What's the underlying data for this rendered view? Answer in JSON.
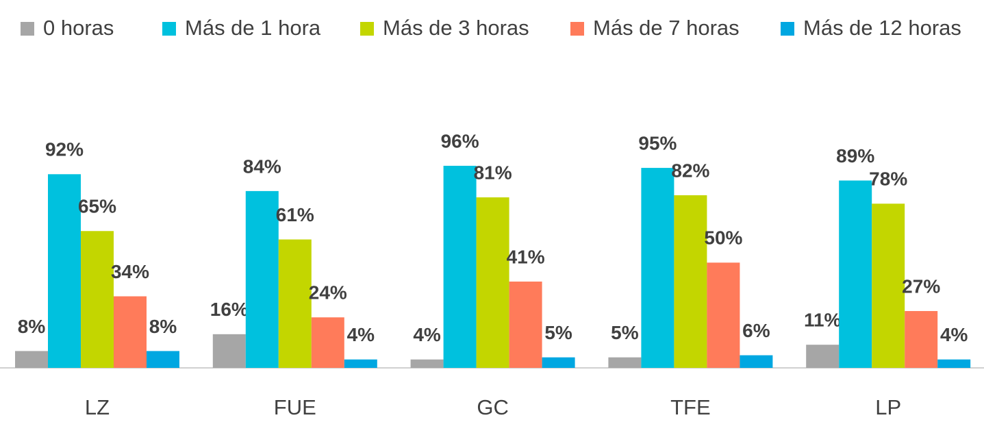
{
  "chart_data": {
    "type": "bar",
    "categories": [
      "LZ",
      "FUE",
      "GC",
      "TFE",
      "LP"
    ],
    "series": [
      {
        "name": "0 horas",
        "color": "#a6a6a6",
        "values": [
          8,
          16,
          4,
          5,
          11
        ],
        "value_labels": [
          "8%",
          "16%",
          "4%",
          "5%",
          "11%"
        ]
      },
      {
        "name": "Más de 1 hora",
        "color": "#00c1de",
        "values": [
          92,
          84,
          96,
          95,
          89
        ],
        "value_labels": [
          "92%",
          "84%",
          "96%",
          "95%",
          "89%"
        ]
      },
      {
        "name": "Más de 3 horas",
        "color": "#c3d600",
        "values": [
          65,
          61,
          81,
          82,
          78
        ],
        "value_labels": [
          "65%",
          "61%",
          "81%",
          "82%",
          "78%"
        ]
      },
      {
        "name": "Más de 7 horas",
        "color": "#ff7b5a",
        "values": [
          34,
          24,
          41,
          50,
          27
        ],
        "value_labels": [
          "34%",
          "24%",
          "41%",
          "50%",
          "27%"
        ]
      },
      {
        "name": "Más de 12 horas",
        "color": "#00a7e1",
        "values": [
          8,
          4,
          5,
          6,
          4
        ],
        "value_labels": [
          "8%",
          "4%",
          "5%",
          "6%",
          "4%"
        ]
      }
    ],
    "legend": "top"
  }
}
